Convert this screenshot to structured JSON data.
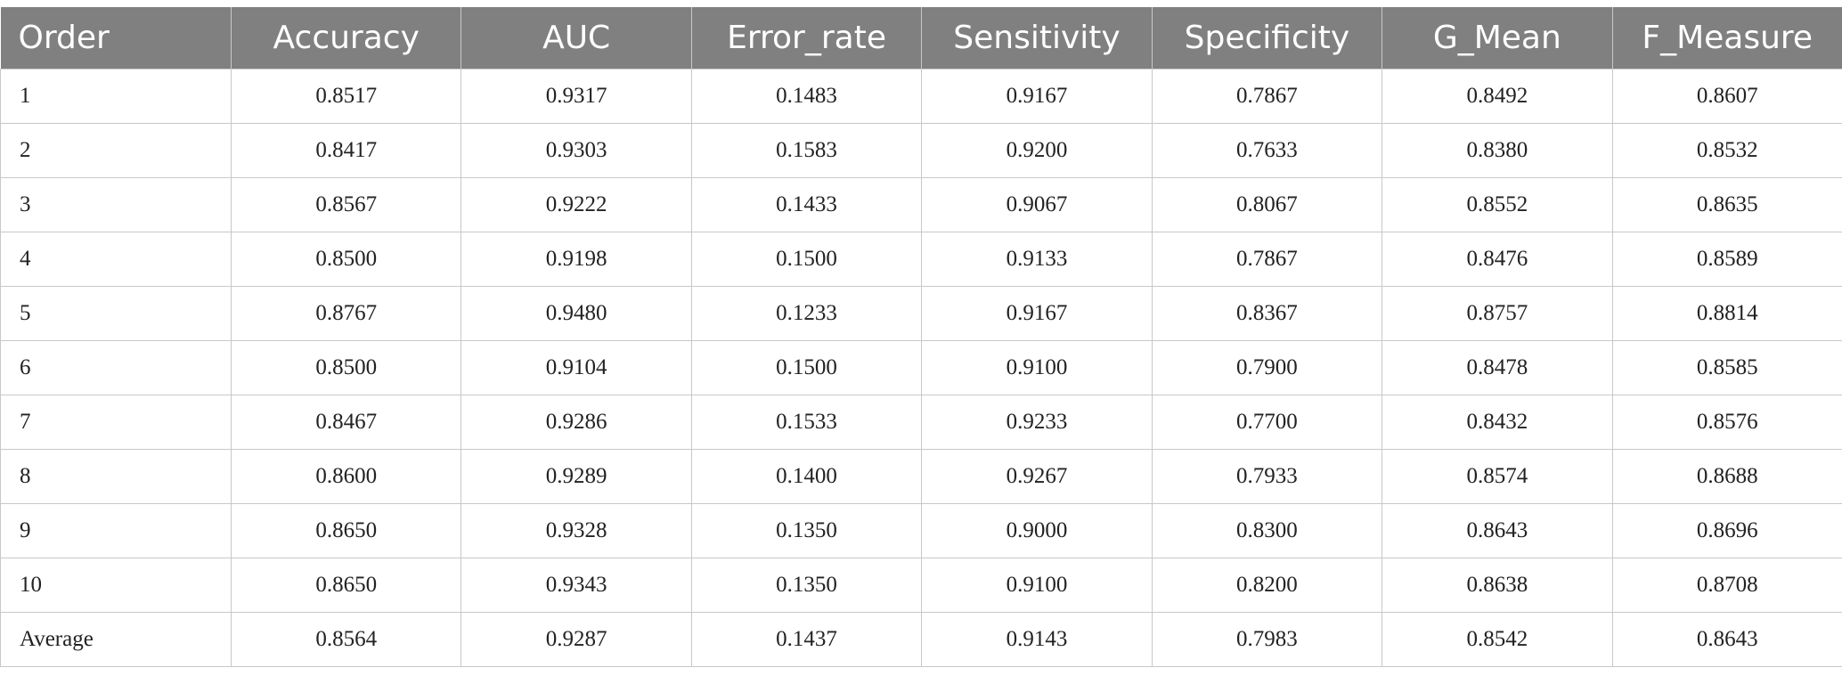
{
  "table": {
    "headers": [
      "Order",
      "Accuracy",
      "AUC",
      "Error_rate",
      "Sensitivity",
      "Specificity",
      "G_Mean",
      "F_Measure"
    ],
    "rows": [
      [
        "1",
        "0.8517",
        "0.9317",
        "0.1483",
        "0.9167",
        "0.7867",
        "0.8492",
        "0.8607"
      ],
      [
        "2",
        "0.8417",
        "0.9303",
        "0.1583",
        "0.9200",
        "0.7633",
        "0.8380",
        "0.8532"
      ],
      [
        "3",
        "0.8567",
        "0.9222",
        "0.1433",
        "0.9067",
        "0.8067",
        "0.8552",
        "0.8635"
      ],
      [
        "4",
        "0.8500",
        "0.9198",
        "0.1500",
        "0.9133",
        "0.7867",
        "0.8476",
        "0.8589"
      ],
      [
        "5",
        "0.8767",
        "0.9480",
        "0.1233",
        "0.9167",
        "0.8367",
        "0.8757",
        "0.8814"
      ],
      [
        "6",
        "0.8500",
        "0.9104",
        "0.1500",
        "0.9100",
        "0.7900",
        "0.8478",
        "0.8585"
      ],
      [
        "7",
        "0.8467",
        "0.9286",
        "0.1533",
        "0.9233",
        "0.7700",
        "0.8432",
        "0.8576"
      ],
      [
        "8",
        "0.8600",
        "0.9289",
        "0.1400",
        "0.9267",
        "0.7933",
        "0.8574",
        "0.8688"
      ],
      [
        "9",
        "0.8650",
        "0.9328",
        "0.1350",
        "0.9000",
        "0.8300",
        "0.8643",
        "0.8696"
      ],
      [
        "10",
        "0.8650",
        "0.9343",
        "0.1350",
        "0.9100",
        "0.8200",
        "0.8638",
        "0.8708"
      ],
      [
        "Average",
        "0.8564",
        "0.9287",
        "0.1437",
        "0.9143",
        "0.7983",
        "0.8542",
        "0.8643"
      ]
    ]
  },
  "colors": {
    "header_background": "#808080",
    "header_text": "#ffffff",
    "grid_line": "#c8c8c8",
    "cell_text": "#222222"
  }
}
